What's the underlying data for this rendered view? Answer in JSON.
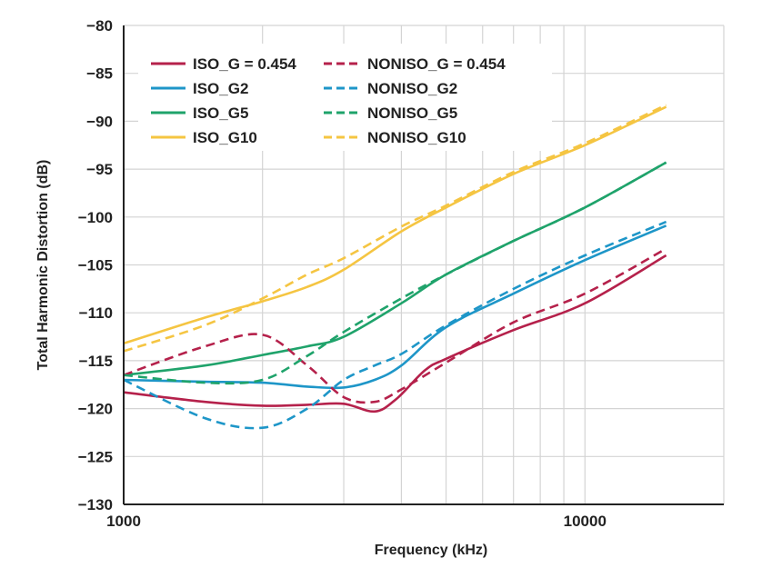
{
  "chart_data": {
    "type": "line",
    "title": "",
    "xlabel": "Frequency (kHz)",
    "ylabel": "Total Harmonic Distortion (dB)",
    "xscale": "log",
    "xlim": [
      1000,
      20000
    ],
    "ylim": [
      -130,
      -80
    ],
    "x_ticks": [
      {
        "value": 1000,
        "label": "1000"
      },
      {
        "value": 10000,
        "label": "10000"
      }
    ],
    "y_ticks": [
      -80,
      -85,
      -90,
      -95,
      -100,
      -105,
      -110,
      -115,
      -120,
      -125,
      -130
    ],
    "grid": true,
    "legend_position": "top-left",
    "series": [
      {
        "name": "ISO_G = 0.454",
        "color": "#b5214b",
        "dash": "solid",
        "x": [
          1000,
          1500,
          2000,
          2500,
          3000,
          3500,
          3900,
          4500,
          5000,
          7000,
          10000,
          15000
        ],
        "y": [
          -118.3,
          -119.3,
          -119.7,
          -119.6,
          -119.5,
          -120.3,
          -119.0,
          -116.0,
          -114.8,
          -111.8,
          -109.0,
          -104.0
        ]
      },
      {
        "name": "NONISO_G = 0.454",
        "color": "#b5214b",
        "dash": "dashed",
        "x": [
          1000,
          1500,
          2000,
          2500,
          3000,
          3500,
          4000,
          5000,
          7000,
          10000,
          15000
        ],
        "y": [
          -116.5,
          -113.5,
          -112.3,
          -115.5,
          -118.8,
          -119.3,
          -118.0,
          -115.2,
          -111.0,
          -108.0,
          -103.3
        ]
      },
      {
        "name": "ISO_G2",
        "color": "#1e96c8",
        "dash": "solid",
        "x": [
          1000,
          1500,
          2000,
          2500,
          3000,
          3500,
          4000,
          5000,
          7000,
          10000,
          15000
        ],
        "y": [
          -117.0,
          -117.2,
          -117.3,
          -117.7,
          -117.8,
          -117.0,
          -115.5,
          -111.5,
          -108.0,
          -104.5,
          -100.9
        ]
      },
      {
        "name": "NONISO_G2",
        "color": "#1e96c8",
        "dash": "dashed",
        "x": [
          1000,
          1500,
          2000,
          2500,
          3000,
          3500,
          4000,
          5000,
          7000,
          10000,
          15000
        ],
        "y": [
          -117.0,
          -121.0,
          -122.0,
          -120.0,
          -117.0,
          -115.5,
          -114.3,
          -111.3,
          -107.5,
          -104.0,
          -100.5
        ]
      },
      {
        "name": "ISO_G5",
        "color": "#1fa36b",
        "dash": "solid",
        "x": [
          1000,
          1500,
          2000,
          2500,
          3000,
          4000,
          5000,
          7000,
          10000,
          15000
        ],
        "y": [
          -116.5,
          -115.5,
          -114.4,
          -113.5,
          -112.5,
          -109.0,
          -106.0,
          -102.5,
          -99.0,
          -94.3
        ]
      },
      {
        "name": "NONISO_G5",
        "color": "#1fa36b",
        "dash": "dashed",
        "x": [
          1000,
          1500,
          2000,
          2500,
          3000,
          4000,
          5000,
          7000,
          10000,
          15000
        ],
        "y": [
          -116.5,
          -117.3,
          -117.0,
          -114.5,
          -112.0,
          -108.5,
          -106.0,
          -102.5,
          -99.0,
          -94.3
        ]
      },
      {
        "name": "ISO_G10",
        "color": "#f5c542",
        "dash": "solid",
        "x": [
          1000,
          1500,
          2000,
          2500,
          3000,
          4000,
          5000,
          7000,
          10000,
          15000
        ],
        "y": [
          -113.2,
          -110.5,
          -108.8,
          -107.3,
          -105.5,
          -101.5,
          -99.0,
          -95.5,
          -92.5,
          -88.5
        ]
      },
      {
        "name": "NONISO_G10",
        "color": "#f5c542",
        "dash": "dashed",
        "x": [
          1000,
          1500,
          2000,
          2500,
          3000,
          4000,
          5000,
          7000,
          10000,
          15000
        ],
        "y": [
          -114.0,
          -111.3,
          -108.5,
          -106.0,
          -104.3,
          -101.0,
          -98.8,
          -95.3,
          -92.3,
          -88.3
        ]
      }
    ]
  }
}
